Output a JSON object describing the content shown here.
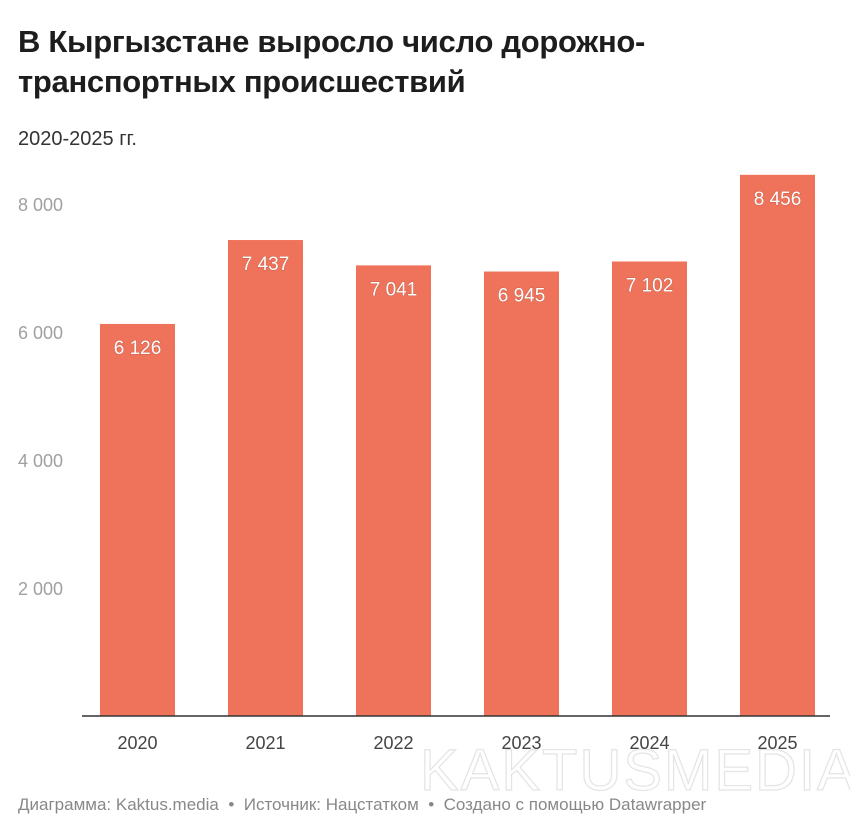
{
  "title": "В Кыргызстане выросло число дорожно-транспортных происшествий",
  "subtitle": "2020-2025 гг.",
  "footer": {
    "chart_by": "Диаграмма: Kaktus.media",
    "source": "Источник: Нацстатком",
    "created": "Создано с помощью Datawrapper"
  },
  "watermark": "KAKTUSMEDIA",
  "chart_data": {
    "type": "bar",
    "title": "В Кыргызстане выросло число дорожно-транспортных происшествий",
    "subtitle": "2020-2025 гг.",
    "categories": [
      "2020",
      "2021",
      "2022",
      "2023",
      "2024",
      "2025"
    ],
    "values": [
      6126,
      7437,
      7041,
      6945,
      7102,
      8456
    ],
    "value_labels": [
      "6 126",
      "7 437",
      "7 041",
      "6 945",
      "7 102",
      "8 456"
    ],
    "ylim": [
      0,
      8500
    ],
    "yticks": [
      2000,
      4000,
      6000,
      8000
    ],
    "ytick_labels": [
      "2 000",
      "4 000",
      "6 000",
      "8 000"
    ],
    "grid": false,
    "color": "#ee735a"
  }
}
